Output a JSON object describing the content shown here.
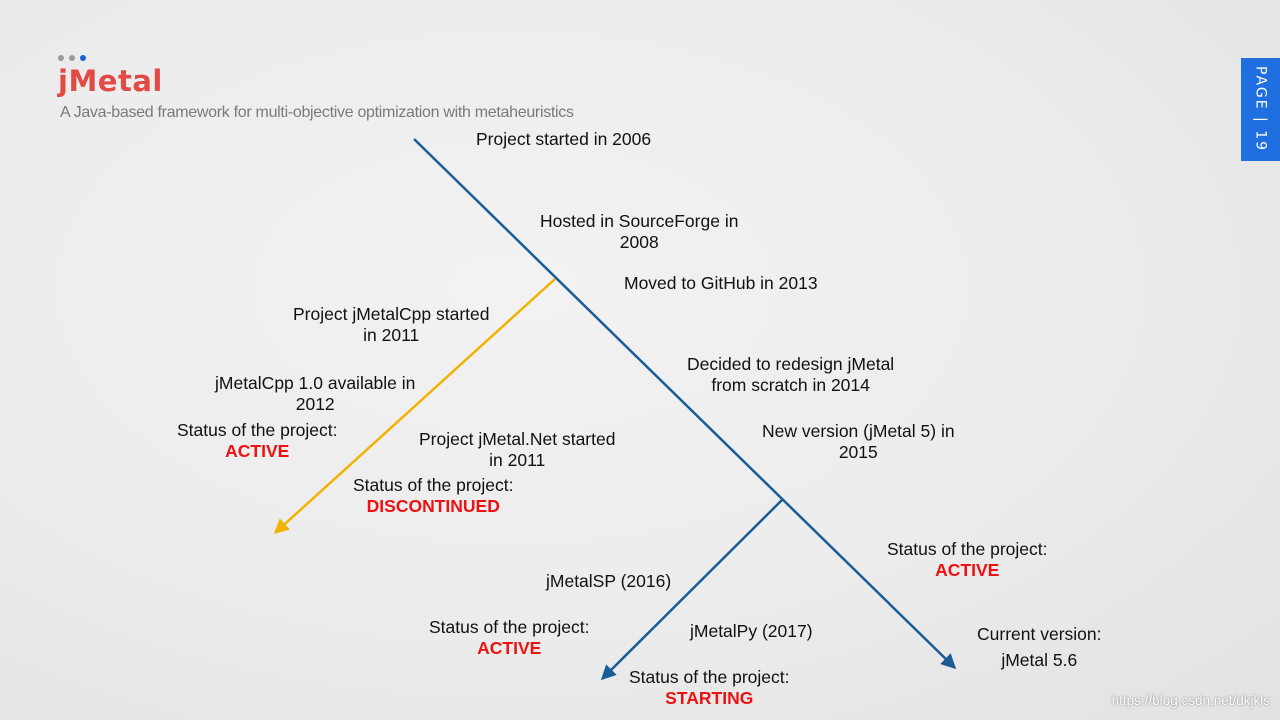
{
  "header": {
    "title": "jMetal",
    "subtitle": "A Java-based framework for multi-objective optimization with metaheuristics",
    "page": "PAGE | 19"
  },
  "colors": {
    "main_line": "#1a5c96",
    "cpp_branch": "#f2b200",
    "status": "#ee1111",
    "accent": "#1f6fe0",
    "title": "#e24a45"
  },
  "timeline": {
    "started": "Project started in 2006",
    "sourceforge": "Hosted in SourceForge in\n2008",
    "github": "Moved to GitHub in 2013",
    "redesign": "Decided to redesign jMetal\nfrom scratch in 2014",
    "jmetal5": "New version (jMetal 5) in\n2015",
    "status_text": "Status of the project:",
    "status_value": "ACTIVE",
    "current_label": "Current version:",
    "current_value": "jMetal 5.6"
  },
  "cpp": {
    "started": "Project jMetalCpp started\nin 2011",
    "release": "jMetalCpp 1.0 available in\n2012",
    "status_text": "Status of the project:",
    "status_value": "ACTIVE"
  },
  "dotnet": {
    "started": "Project jMetal.Net started\nin 2011",
    "status_text": "Status of the project:",
    "status_value": "DISCONTINUED"
  },
  "sp": {
    "label": "jMetalSP (2016)",
    "status_text": "Status of the project:",
    "status_value": "ACTIVE"
  },
  "py": {
    "label": "jMetalPy (2017)",
    "status_text": "Status of the project:",
    "status_value": "STARTING"
  },
  "watermark": "https://blog.csdn.net/dkjkls"
}
